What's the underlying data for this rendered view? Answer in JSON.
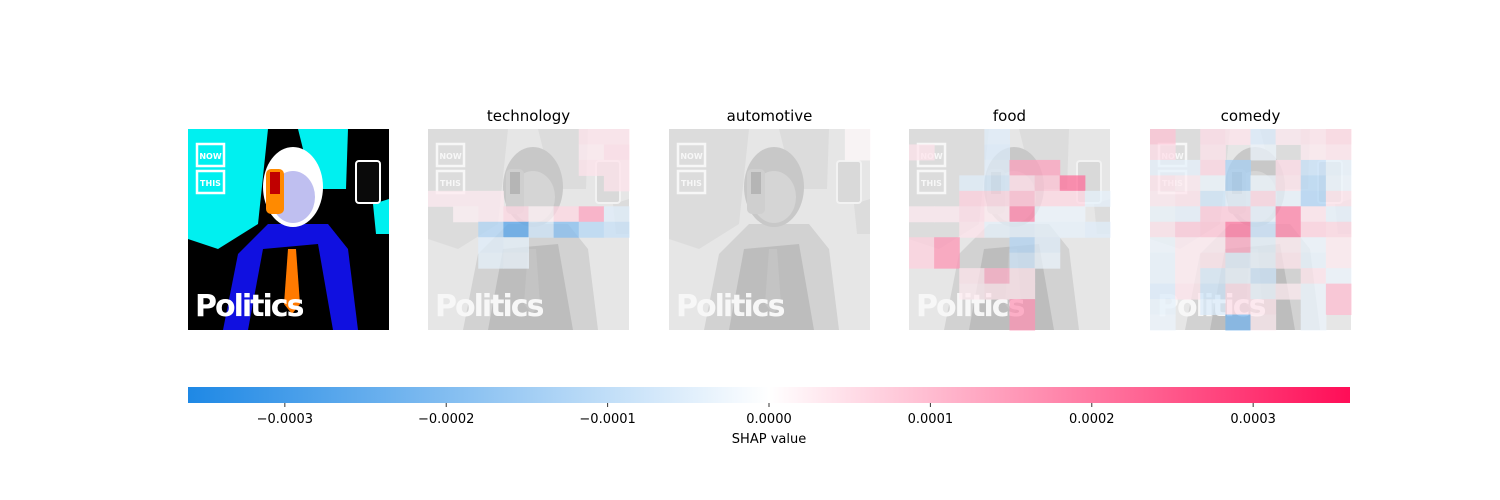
{
  "chart_data": {
    "type": "heatmap",
    "title": "",
    "panels": [
      {
        "name": "",
        "role": "original-image"
      },
      {
        "name": "technology",
        "role": "explanation",
        "cells": [
          {
            "r": 0,
            "c": 6,
            "v": 4e-05
          },
          {
            "r": 0,
            "c": 7,
            "v": 4e-05
          },
          {
            "r": 1,
            "c": 6,
            "v": 3e-05
          },
          {
            "r": 1,
            "c": 7,
            "v": 5e-05
          },
          {
            "r": 2,
            "c": 6,
            "v": 4e-05
          },
          {
            "r": 2,
            "c": 7,
            "v": 4e-05
          },
          {
            "r": 3,
            "c": 7,
            "v": 4e-05
          },
          {
            "r": 4,
            "c": 0,
            "v": 3e-05
          },
          {
            "r": 4,
            "c": 1,
            "v": 3e-05
          },
          {
            "r": 4,
            "c": 2,
            "v": 3e-05
          },
          {
            "r": 5,
            "c": 1,
            "v": 2e-05
          },
          {
            "r": 5,
            "c": 2,
            "v": 3e-05
          },
          {
            "r": 5,
            "c": 3,
            "v": 6e-05
          },
          {
            "r": 5,
            "c": 4,
            "v": 2e-05
          },
          {
            "r": 5,
            "c": 5,
            "v": 6e-05
          },
          {
            "r": 5,
            "c": 6,
            "v": 0.00014
          },
          {
            "r": 5,
            "c": 7,
            "v": -5e-05
          },
          {
            "r": 6,
            "c": 2,
            "v": -0.00013
          },
          {
            "r": 6,
            "c": 3,
            "v": -0.00028
          },
          {
            "r": 6,
            "c": 4,
            "v": -8e-05
          },
          {
            "r": 6,
            "c": 5,
            "v": -0.0002
          },
          {
            "r": 6,
            "c": 6,
            "v": -0.00012
          },
          {
            "r": 6,
            "c": 7,
            "v": -9e-05
          },
          {
            "r": 7,
            "c": 2,
            "v": -5e-05
          },
          {
            "r": 7,
            "c": 3,
            "v": -4e-05
          },
          {
            "r": 8,
            "c": 2,
            "v": -4e-05
          },
          {
            "r": 8,
            "c": 3,
            "v": -3e-05
          }
        ]
      },
      {
        "name": "automotive",
        "role": "explanation",
        "cells": [
          {
            "r": 0,
            "c": 7,
            "v": 1e-05
          },
          {
            "r": 1,
            "c": 7,
            "v": 1e-05
          }
        ]
      },
      {
        "name": "food",
        "role": "explanation",
        "cells": [
          {
            "r": 0,
            "c": 3,
            "v": -5e-05
          },
          {
            "r": 1,
            "c": 0,
            "v": 4e-05
          },
          {
            "r": 1,
            "c": 3,
            "v": -6e-05
          },
          {
            "r": 2,
            "c": 3,
            "v": -5e-05
          },
          {
            "r": 2,
            "c": 4,
            "v": 0.00014
          },
          {
            "r": 2,
            "c": 5,
            "v": 0.00014
          },
          {
            "r": 3,
            "c": 2,
            "v": -5e-05
          },
          {
            "r": 3,
            "c": 3,
            "v": -7e-05
          },
          {
            "r": 3,
            "c": 4,
            "v": 5e-05
          },
          {
            "r": 3,
            "c": 5,
            "v": 9e-05
          },
          {
            "r": 3,
            "c": 6,
            "v": 0.00022
          },
          {
            "r": 4,
            "c": 2,
            "v": 7e-05
          },
          {
            "r": 4,
            "c": 3,
            "v": 6e-05
          },
          {
            "r": 4,
            "c": 4,
            "v": 0.0001
          },
          {
            "r": 4,
            "c": 5,
            "v": 6e-05
          },
          {
            "r": 4,
            "c": 6,
            "v": 6e-05
          },
          {
            "r": 4,
            "c": 7,
            "v": -4e-05
          },
          {
            "r": 5,
            "c": 0,
            "v": 3e-05
          },
          {
            "r": 5,
            "c": 1,
            "v": 3e-05
          },
          {
            "r": 5,
            "c": 2,
            "v": 5e-05
          },
          {
            "r": 5,
            "c": 3,
            "v": 3e-05
          },
          {
            "r": 5,
            "c": 4,
            "v": 0.00019
          },
          {
            "r": 5,
            "c": 5,
            "v": -3e-05
          },
          {
            "r": 5,
            "c": 6,
            "v": -3e-05
          },
          {
            "r": 6,
            "c": 2,
            "v": 4e-05
          },
          {
            "r": 6,
            "c": 3,
            "v": -4e-05
          },
          {
            "r": 6,
            "c": 4,
            "v": -5e-05
          },
          {
            "r": 6,
            "c": 5,
            "v": -4e-05
          },
          {
            "r": 6,
            "c": 6,
            "v": -4e-05
          },
          {
            "r": 6,
            "c": 7,
            "v": -5e-05
          },
          {
            "r": 7,
            "c": 0,
            "v": 7e-05
          },
          {
            "r": 7,
            "c": 1,
            "v": 0.00016
          },
          {
            "r": 7,
            "c": 4,
            "v": -0.00012
          },
          {
            "r": 7,
            "c": 5,
            "v": -5e-05
          },
          {
            "r": 8,
            "c": 0,
            "v": 7e-05
          },
          {
            "r": 8,
            "c": 1,
            "v": 0.00016
          },
          {
            "r": 8,
            "c": 4,
            "v": -8e-05
          },
          {
            "r": 8,
            "c": 5,
            "v": -3e-05
          },
          {
            "r": 9,
            "c": 2,
            "v": 4e-05
          },
          {
            "r": 9,
            "c": 3,
            "v": 0.00012
          },
          {
            "r": 9,
            "c": 4,
            "v": 4e-05
          },
          {
            "r": 10,
            "c": 2,
            "v": 3e-05
          },
          {
            "r": 10,
            "c": 3,
            "v": 4e-05
          },
          {
            "r": 10,
            "c": 4,
            "v": 4e-05
          },
          {
            "r": 11,
            "c": 4,
            "v": 0.00016
          },
          {
            "r": 12,
            "c": 4,
            "v": 0.00016
          }
        ]
      },
      {
        "name": "comedy",
        "role": "explanation",
        "cells": [
          {
            "r": 0,
            "c": 0,
            "v": 9e-05
          },
          {
            "r": 0,
            "c": 2,
            "v": 5e-05
          },
          {
            "r": 0,
            "c": 3,
            "v": 4e-05
          },
          {
            "r": 0,
            "c": 4,
            "v": -6e-05
          },
          {
            "r": 0,
            "c": 5,
            "v": 3e-05
          },
          {
            "r": 0,
            "c": 6,
            "v": 4e-05
          },
          {
            "r": 0,
            "c": 7,
            "v": 6e-05
          },
          {
            "r": 1,
            "c": 0,
            "v": 5e-05
          },
          {
            "r": 1,
            "c": 2,
            "v": 4e-05
          },
          {
            "r": 1,
            "c": 4,
            "v": -3e-05
          },
          {
            "r": 1,
            "c": 6,
            "v": 3e-05
          },
          {
            "r": 1,
            "c": 7,
            "v": 4e-05
          },
          {
            "r": 2,
            "c": 0,
            "v": -4e-05
          },
          {
            "r": 2,
            "c": 1,
            "v": -4e-05
          },
          {
            "r": 2,
            "c": 2,
            "v": 6e-05
          },
          {
            "r": 2,
            "c": 3,
            "v": -0.00014
          },
          {
            "r": 2,
            "c": 5,
            "v": 5e-05
          },
          {
            "r": 2,
            "c": 6,
            "v": -9e-05
          },
          {
            "r": 2,
            "c": 7,
            "v": -4e-05
          },
          {
            "r": 3,
            "c": 0,
            "v": 4e-05
          },
          {
            "r": 3,
            "c": 1,
            "v": 3e-05
          },
          {
            "r": 3,
            "c": 2,
            "v": -3e-05
          },
          {
            "r": 3,
            "c": 3,
            "v": -0.00014
          },
          {
            "r": 3,
            "c": 4,
            "v": -3e-05
          },
          {
            "r": 3,
            "c": 5,
            "v": 4e-05
          },
          {
            "r": 3,
            "c": 6,
            "v": -0.00012
          },
          {
            "r": 3,
            "c": 7,
            "v": -3e-05
          },
          {
            "r": 4,
            "c": 0,
            "v": 3e-05
          },
          {
            "r": 4,
            "c": 1,
            "v": 4e-05
          },
          {
            "r": 4,
            "c": 2,
            "v": -8e-05
          },
          {
            "r": 4,
            "c": 3,
            "v": -5e-05
          },
          {
            "r": 4,
            "c": 4,
            "v": 6e-05
          },
          {
            "r": 4,
            "c": 5,
            "v": -4e-05
          },
          {
            "r": 4,
            "c": 6,
            "v": -0.00013
          },
          {
            "r": 4,
            "c": 7,
            "v": 4e-05
          },
          {
            "r": 5,
            "c": 0,
            "v": -3e-05
          },
          {
            "r": 5,
            "c": 1,
            "v": -4e-05
          },
          {
            "r": 5,
            "c": 2,
            "v": 8e-05
          },
          {
            "r": 5,
            "c": 3,
            "v": 8e-05
          },
          {
            "r": 5,
            "c": 4,
            "v": -4e-05
          },
          {
            "r": 5,
            "c": 5,
            "v": 0.00019
          },
          {
            "r": 5,
            "c": 6,
            "v": 4e-05
          },
          {
            "r": 5,
            "c": 7,
            "v": -4e-05
          },
          {
            "r": 6,
            "c": 0,
            "v": 4e-05
          },
          {
            "r": 6,
            "c": 1,
            "v": 8e-05
          },
          {
            "r": 6,
            "c": 2,
            "v": 9e-05
          },
          {
            "r": 6,
            "c": 3,
            "v": 0.00021
          },
          {
            "r": 6,
            "c": 4,
            "v": -9e-05
          },
          {
            "r": 6,
            "c": 5,
            "v": 0.00019
          },
          {
            "r": 6,
            "c": 6,
            "v": 7e-05
          },
          {
            "r": 6,
            "c": 7,
            "v": 6e-05
          },
          {
            "r": 7,
            "c": 0,
            "v": -3e-05
          },
          {
            "r": 7,
            "c": 1,
            "v": 3e-05
          },
          {
            "r": 7,
            "c": 2,
            "v": 3e-05
          },
          {
            "r": 7,
            "c": 3,
            "v": 0.00013
          },
          {
            "r": 7,
            "c": 4,
            "v": -4e-05
          },
          {
            "r": 7,
            "c": 5,
            "v": 3e-05
          },
          {
            "r": 7,
            "c": 6,
            "v": -3e-05
          },
          {
            "r": 7,
            "c": 7,
            "v": 3e-05
          },
          {
            "r": 8,
            "c": 0,
            "v": -4e-05
          },
          {
            "r": 8,
            "c": 1,
            "v": 3e-05
          },
          {
            "r": 8,
            "c": 2,
            "v": 4e-05
          },
          {
            "r": 8,
            "c": 3,
            "v": -5e-05
          },
          {
            "r": 8,
            "c": 4,
            "v": -3e-05
          },
          {
            "r": 8,
            "c": 5,
            "v": 4e-05
          },
          {
            "r": 8,
            "c": 6,
            "v": -4e-05
          },
          {
            "r": 8,
            "c": 7,
            "v": 3e-05
          },
          {
            "r": 9,
            "c": 0,
            "v": -4e-05
          },
          {
            "r": 9,
            "c": 1,
            "v": 3e-05
          },
          {
            "r": 9,
            "c": 2,
            "v": -6e-05
          },
          {
            "r": 9,
            "c": 3,
            "v": -3e-05
          },
          {
            "r": 9,
            "c": 4,
            "v": -8e-05
          },
          {
            "r": 9,
            "c": 6,
            "v": 4e-05
          },
          {
            "r": 9,
            "c": 7,
            "v": -3e-05
          },
          {
            "r": 10,
            "c": 0,
            "v": -6e-05
          },
          {
            "r": 10,
            "c": 1,
            "v": 4e-05
          },
          {
            "r": 10,
            "c": 2,
            "v": -8e-05
          },
          {
            "r": 10,
            "c": 3,
            "v": 5e-05
          },
          {
            "r": 10,
            "c": 4,
            "v": -3e-05
          },
          {
            "r": 10,
            "c": 5,
            "v": 3e-05
          },
          {
            "r": 10,
            "c": 6,
            "v": -3e-05
          },
          {
            "r": 10,
            "c": 7,
            "v": 0.0001
          },
          {
            "r": 11,
            "c": 0,
            "v": -4e-05
          },
          {
            "r": 11,
            "c": 2,
            "v": -6e-05
          },
          {
            "r": 11,
            "c": 3,
            "v": 5e-05
          },
          {
            "r": 11,
            "c": 4,
            "v": 4e-05
          },
          {
            "r": 11,
            "c": 6,
            "v": -3e-05
          },
          {
            "r": 11,
            "c": 7,
            "v": 0.0001
          },
          {
            "r": 12,
            "c": 0,
            "v": -3e-05
          },
          {
            "r": 12,
            "c": 3,
            "v": -0.00022
          },
          {
            "r": 12,
            "c": 4,
            "v": 3e-05
          },
          {
            "r": 12,
            "c": 6,
            "v": -3e-05
          }
        ]
      }
    ],
    "grid": {
      "rows": 13,
      "cols": 8
    },
    "image_text": [
      "NOW",
      "THIS",
      "Politics"
    ],
    "colorbar": {
      "label": "SHAP value",
      "range": [
        -0.00036,
        0.00036
      ],
      "ticks": [
        -0.0003,
        -0.0002,
        -0.0001,
        0.0,
        0.0001,
        0.0002,
        0.0003
      ],
      "tick_labels": [
        "−0.0003",
        "−0.0002",
        "−0.0001",
        "0.0000",
        "0.0001",
        "0.0002",
        "0.0003"
      ],
      "neg_color": "#1e88e5",
      "pos_color": "#ff0d57",
      "mid_color": "#ffffff"
    }
  }
}
